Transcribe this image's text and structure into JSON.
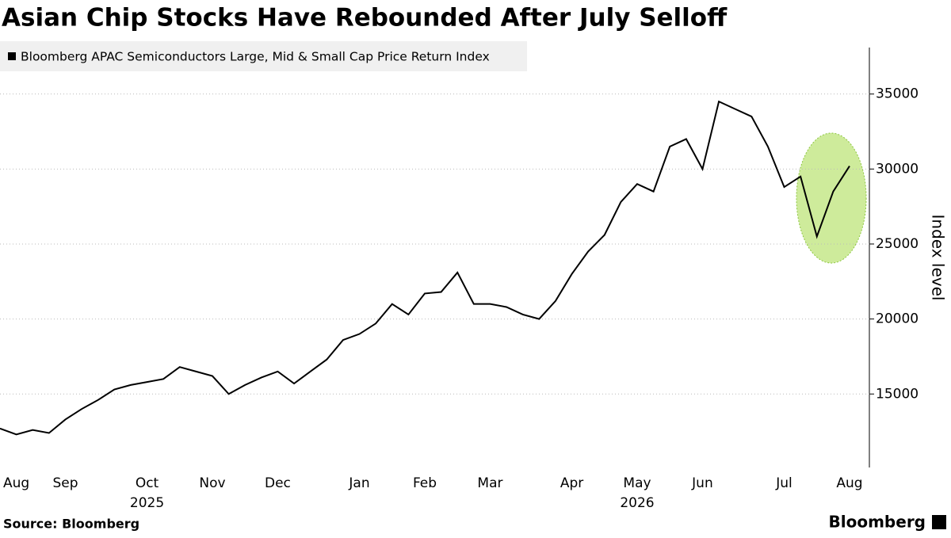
{
  "chart_data": {
    "type": "line",
    "title": "Asian Chip Stocks Have Rebounded After July Selloff",
    "source": "Source: Bloomberg",
    "brand": "Bloomberg",
    "y_axis_label": "Index level",
    "categories": [
      null,
      "Aug",
      null,
      null,
      "Sep",
      null,
      null,
      null,
      null,
      "Oct",
      null,
      null,
      null,
      "Nov",
      null,
      null,
      null,
      "Dec",
      null,
      null,
      null,
      null,
      "Jan",
      null,
      null,
      null,
      "Feb",
      null,
      null,
      null,
      "Mar",
      null,
      null,
      null,
      null,
      "Apr",
      null,
      null,
      null,
      "May",
      null,
      null,
      null,
      "Jun",
      null,
      null,
      null,
      null,
      "Jul",
      null,
      null,
      null,
      "Aug"
    ],
    "secondary_labels": [
      null,
      null,
      null,
      null,
      null,
      null,
      null,
      null,
      null,
      "2025",
      null,
      null,
      null,
      null,
      null,
      null,
      null,
      null,
      null,
      null,
      null,
      null,
      null,
      null,
      null,
      null,
      null,
      null,
      null,
      null,
      null,
      null,
      null,
      null,
      null,
      null,
      null,
      null,
      null,
      "2026",
      null,
      null,
      null,
      null,
      null,
      null,
      null,
      null,
      null,
      null,
      null,
      null,
      null
    ],
    "series": [
      {
        "name": "Bloomberg APAC Semiconductors Large, Mid & Small Cap Price Return Index",
        "color": "#000000",
        "values": [
          12700,
          12300,
          12600,
          12400,
          13300,
          14000,
          14600,
          15300,
          15600,
          15800,
          16000,
          16800,
          16500,
          16200,
          15000,
          15600,
          16100,
          16500,
          15700,
          16500,
          17300,
          18600,
          19000,
          19700,
          21000,
          20300,
          21700,
          21800,
          23100,
          21000,
          21000,
          20800,
          20300,
          20000,
          21200,
          23000,
          24500,
          25600,
          27800,
          29000,
          28500,
          31500,
          32000,
          30000,
          34500,
          34000,
          33500,
          31500,
          28800,
          29500,
          25500,
          28500,
          30200
        ]
      }
    ],
    "ylim": [
      10100,
      38100
    ],
    "yticks": [
      15000,
      20000,
      25000,
      30000,
      35000
    ],
    "grid": true,
    "legend": "top-left"
  }
}
